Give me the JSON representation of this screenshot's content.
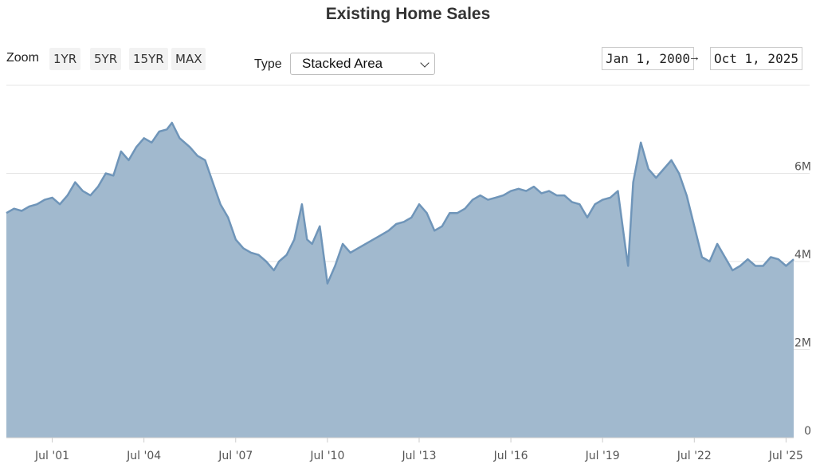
{
  "header": {
    "title": "Existing Home Sales"
  },
  "controls": {
    "zoom_label": "Zoom",
    "zoom_buttons": [
      "1YR",
      "5YR",
      "15YR",
      "MAX"
    ],
    "type_label": "Type",
    "type_value": "Stacked Area",
    "range_from": "Jan 1, 2000",
    "range_arrow": "→",
    "range_to": "Oct 1, 2025"
  },
  "colors": {
    "area_fill": "#a1b9ce",
    "line": "#6f95b9",
    "grid": "#e6e6e6"
  },
  "chart_data": {
    "type": "area",
    "title": "Existing Home Sales",
    "xlabel": "",
    "ylabel": "",
    "x_range": [
      "2000-01",
      "2025-10"
    ],
    "ylim": [
      0,
      8000000
    ],
    "y_ticks": [
      0,
      2000000,
      4000000,
      6000000
    ],
    "y_tick_labels": [
      "0",
      "2M",
      "4M",
      "6M"
    ],
    "x_ticks": [
      "2001-07",
      "2004-07",
      "2007-07",
      "2010-07",
      "2013-07",
      "2016-07",
      "2019-07",
      "2022-07",
      "2025-07"
    ],
    "x_tick_labels": [
      "Jul '01",
      "Jul '04",
      "Jul '07",
      "Jul '10",
      "Jul '13",
      "Jul '16",
      "Jul '19",
      "Jul '22",
      "Jul '25"
    ],
    "grid": true,
    "legend": "none",
    "series": [
      {
        "x": [
          "2000-01",
          "2000-04",
          "2000-07",
          "2000-10",
          "2001-01",
          "2001-04",
          "2001-07",
          "2001-10",
          "2002-01",
          "2002-04",
          "2002-07",
          "2002-10",
          "2003-01",
          "2003-04",
          "2003-07",
          "2003-10",
          "2004-01",
          "2004-04",
          "2004-07",
          "2004-10",
          "2005-01",
          "2005-04",
          "2005-06",
          "2005-09",
          "2006-01",
          "2006-04",
          "2006-07",
          "2006-10",
          "2007-01",
          "2007-04",
          "2007-07",
          "2007-10",
          "2008-01",
          "2008-04",
          "2008-07",
          "2008-10",
          "2008-12",
          "2009-03",
          "2009-06",
          "2009-09",
          "2009-11",
          "2010-01",
          "2010-04",
          "2010-07",
          "2010-10",
          "2011-01",
          "2011-04",
          "2011-07",
          "2011-10",
          "2012-01",
          "2012-04",
          "2012-07",
          "2012-10",
          "2013-01",
          "2013-04",
          "2013-07",
          "2013-10",
          "2014-01",
          "2014-04",
          "2014-07",
          "2014-10",
          "2015-01",
          "2015-04",
          "2015-07",
          "2015-10",
          "2016-01",
          "2016-04",
          "2016-07",
          "2016-10",
          "2017-01",
          "2017-04",
          "2017-07",
          "2017-10",
          "2018-01",
          "2018-04",
          "2018-07",
          "2018-10",
          "2019-01",
          "2019-04",
          "2019-07",
          "2019-10",
          "2020-01",
          "2020-04",
          "2020-05",
          "2020-07",
          "2020-10",
          "2021-01",
          "2021-04",
          "2021-07",
          "2021-10",
          "2022-01",
          "2022-04",
          "2022-07",
          "2022-10",
          "2023-01",
          "2023-04",
          "2023-07",
          "2023-10",
          "2024-01",
          "2024-04",
          "2024-07",
          "2024-10",
          "2025-01",
          "2025-04",
          "2025-07",
          "2025-10"
        ],
        "values": [
          5100000,
          5200000,
          5150000,
          5250000,
          5300000,
          5400000,
          5450000,
          5300000,
          5500000,
          5800000,
          5600000,
          5500000,
          5700000,
          6000000,
          5950000,
          6500000,
          6300000,
          6600000,
          6800000,
          6700000,
          6950000,
          7000000,
          7150000,
          6800000,
          6600000,
          6400000,
          6300000,
          5800000,
          5300000,
          5000000,
          4500000,
          4300000,
          4200000,
          4150000,
          4000000,
          3800000,
          4000000,
          4150000,
          4500000,
          5300000,
          4500000,
          4400000,
          4800000,
          3500000,
          3900000,
          4400000,
          4200000,
          4300000,
          4400000,
          4500000,
          4600000,
          4700000,
          4850000,
          4900000,
          5000000,
          5300000,
          5100000,
          4700000,
          4800000,
          5100000,
          5100000,
          5200000,
          5400000,
          5500000,
          5400000,
          5450000,
          5500000,
          5600000,
          5650000,
          5600000,
          5700000,
          5550000,
          5600000,
          5500000,
          5500000,
          5350000,
          5300000,
          5000000,
          5300000,
          5400000,
          5450000,
          5600000,
          4300000,
          3900000,
          5800000,
          6700000,
          6100000,
          5900000,
          6100000,
          6300000,
          6000000,
          5500000,
          4800000,
          4100000,
          4000000,
          4400000,
          4100000,
          3800000,
          3900000,
          4050000,
          3900000,
          3900000,
          4100000,
          4050000,
          3900000,
          4050000
        ]
      }
    ]
  }
}
